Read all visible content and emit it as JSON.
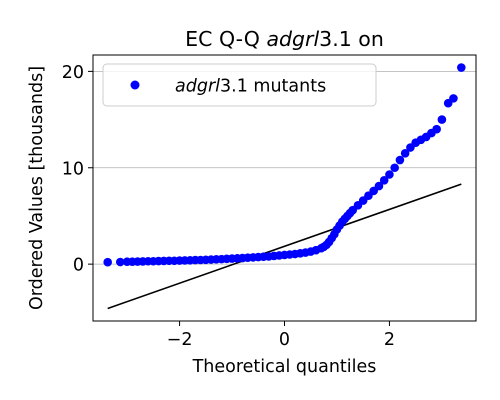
{
  "chart_data": {
    "type": "scatter",
    "title": {
      "prefix": "EC Q-Q ",
      "italic": "adgrl",
      "suffix": "3.1 on"
    },
    "xlabel": "Theoretical quantiles",
    "ylabel": "Ordered Values [thousands]",
    "xlim": [
      -3.65,
      3.65
    ],
    "ylim": [
      -5.9,
      21.7
    ],
    "xticks": [
      {
        "value": -2,
        "label": "−2"
      },
      {
        "value": 0,
        "label": "0"
      },
      {
        "value": 2,
        "label": "2"
      }
    ],
    "yticks": [
      {
        "value": 0,
        "label": "0"
      },
      {
        "value": 10,
        "label": "10"
      },
      {
        "value": 20,
        "label": "20"
      }
    ],
    "grid": {
      "y": true,
      "x": false
    },
    "legend": {
      "placement": "top-left",
      "entries": [
        {
          "italic": "adgrl",
          "suffix": "3.1 mutants",
          "color": "#0000ff"
        }
      ]
    },
    "series": [
      {
        "kind": "points",
        "color": "#0000ff",
        "x": [
          -3.37,
          -3.13,
          -3.0,
          -2.9,
          -2.8,
          -2.7,
          -2.6,
          -2.5,
          -2.4,
          -2.3,
          -2.2,
          -2.1,
          -2.0,
          -1.9,
          -1.8,
          -1.7,
          -1.6,
          -1.5,
          -1.4,
          -1.3,
          -1.2,
          -1.1,
          -1.0,
          -0.9,
          -0.8,
          -0.7,
          -0.6,
          -0.5,
          -0.4,
          -0.3,
          -0.2,
          -0.1,
          0.0,
          0.1,
          0.2,
          0.3,
          0.4,
          0.5,
          0.6,
          0.7,
          0.75,
          0.8,
          0.85,
          0.9,
          0.95,
          1.0,
          1.05,
          1.1,
          1.15,
          1.2,
          1.25,
          1.3,
          1.4,
          1.5,
          1.6,
          1.7,
          1.8,
          1.9,
          2.0,
          2.1,
          2.2,
          2.3,
          2.4,
          2.5,
          2.6,
          2.7,
          2.8,
          2.9,
          3.0,
          3.12,
          3.22,
          3.37
        ],
        "y": [
          0.2,
          0.22,
          0.25,
          0.25,
          0.27,
          0.28,
          0.3,
          0.3,
          0.32,
          0.33,
          0.35,
          0.35,
          0.37,
          0.38,
          0.4,
          0.42,
          0.43,
          0.45,
          0.47,
          0.5,
          0.52,
          0.55,
          0.58,
          0.6,
          0.63,
          0.67,
          0.7,
          0.73,
          0.77,
          0.8,
          0.85,
          0.9,
          0.95,
          1.0,
          1.05,
          1.12,
          1.2,
          1.3,
          1.45,
          1.65,
          1.8,
          2.0,
          2.3,
          2.7,
          3.1,
          3.6,
          4.0,
          4.4,
          4.7,
          5.0,
          5.3,
          5.6,
          6.1,
          6.6,
          7.1,
          7.6,
          8.1,
          8.7,
          9.3,
          10.0,
          10.8,
          11.5,
          12.1,
          12.6,
          12.9,
          13.2,
          13.6,
          14.0,
          15.0,
          16.7,
          17.2,
          20.4
        ]
      },
      {
        "kind": "line",
        "color": "#000000",
        "x": [
          -3.37,
          3.37
        ],
        "y": [
          -4.6,
          8.3
        ]
      }
    ]
  }
}
